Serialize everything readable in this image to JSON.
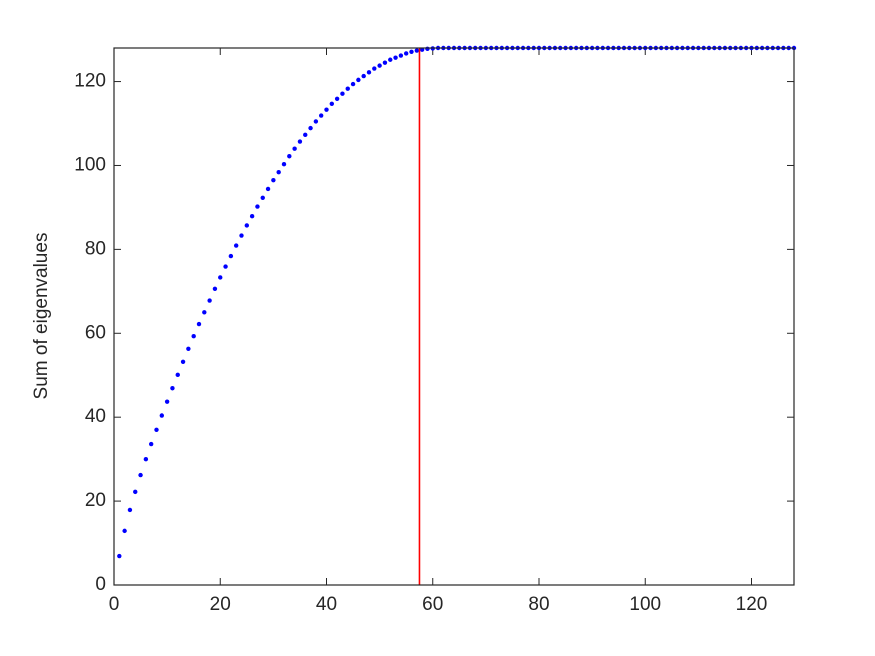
{
  "chart_data": {
    "type": "scatter",
    "ylabel": "Sum of eigenvalues",
    "x": [
      1,
      2,
      3,
      4,
      5,
      6,
      7,
      8,
      9,
      10,
      11,
      12,
      13,
      14,
      15,
      16,
      17,
      18,
      19,
      20,
      21,
      22,
      23,
      24,
      25,
      26,
      27,
      28,
      29,
      30,
      31,
      32,
      33,
      34,
      35,
      36,
      37,
      38,
      39,
      40,
      41,
      42,
      43,
      44,
      45,
      46,
      47,
      48,
      49,
      50,
      51,
      52,
      53,
      54,
      55,
      56,
      57,
      58,
      59,
      60,
      61,
      62,
      63,
      64,
      65,
      66,
      67,
      68,
      69,
      70,
      71,
      72,
      73,
      74,
      75,
      76,
      77,
      78,
      79,
      80,
      81,
      82,
      83,
      84,
      85,
      86,
      87,
      88,
      89,
      90,
      91,
      92,
      93,
      94,
      95,
      96,
      97,
      98,
      99,
      100,
      101,
      102,
      103,
      104,
      105,
      106,
      107,
      108,
      109,
      110,
      111,
      112,
      113,
      114,
      115,
      116,
      117,
      118,
      119,
      120,
      121,
      122,
      123,
      124,
      125,
      126,
      127,
      128
    ],
    "series": [
      {
        "color": "#0000ff",
        "values": [
          6.9,
          12.9,
          17.9,
          22.2,
          26.2,
          30.0,
          33.6,
          37.0,
          40.4,
          43.7,
          46.9,
          50.1,
          53.2,
          56.3,
          59.3,
          62.2,
          65.0,
          67.8,
          70.6,
          73.3,
          75.9,
          78.4,
          80.9,
          83.3,
          85.7,
          87.9,
          90.2,
          92.3,
          94.4,
          96.5,
          98.4,
          100.3,
          102.2,
          104.0,
          105.7,
          107.3,
          108.9,
          110.5,
          111.9,
          113.3,
          114.7,
          115.9,
          117.1,
          118.3,
          119.4,
          120.4,
          121.3,
          122.2,
          123.1,
          123.8,
          124.5,
          125.2,
          125.7,
          126.2,
          126.7,
          127.1,
          127.4,
          127.6,
          127.8,
          127.9,
          128.0,
          128.0,
          128,
          128,
          128,
          128,
          128,
          128,
          128,
          128,
          128,
          128,
          128,
          128,
          128,
          128,
          128,
          128,
          128,
          128,
          128,
          128,
          128,
          128,
          128,
          128,
          128,
          128,
          128,
          128,
          128,
          128,
          128,
          128,
          128,
          128,
          128,
          128,
          128,
          128,
          128,
          128,
          128,
          128,
          128,
          128,
          128,
          128,
          128,
          128,
          128,
          128,
          128,
          128,
          128,
          128,
          128,
          128,
          128,
          128,
          128,
          128,
          128,
          128,
          128,
          128,
          128,
          128
        ]
      }
    ],
    "vline": {
      "x": 57.5,
      "color": "#ff0000"
    },
    "xlim": [
      0,
      128
    ],
    "xticks": [
      0,
      20,
      40,
      60,
      80,
      100,
      120
    ],
    "ylim": [
      0,
      128
    ],
    "yticks": [
      0,
      20,
      40,
      60,
      80,
      100,
      120
    ],
    "grid": false
  }
}
